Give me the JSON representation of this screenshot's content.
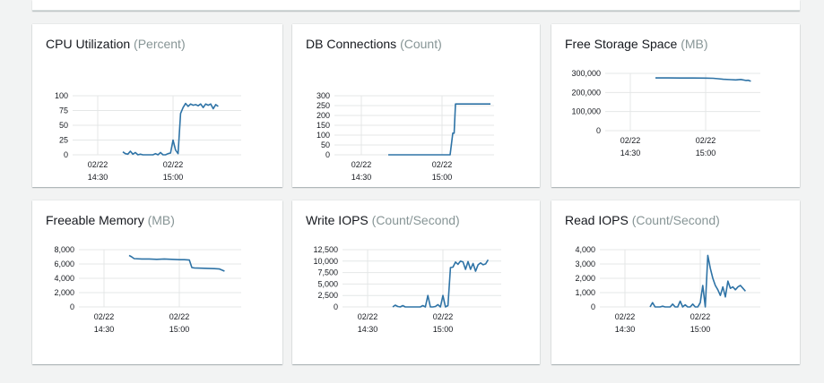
{
  "colors": {
    "line": "#2e73a6",
    "grid": "#e4e7e7",
    "axis": "#aab7b8"
  },
  "cards": [
    {
      "title": "CPU Utilization",
      "unit": "(Percent)",
      "chart_data": {
        "type": "line",
        "title": "CPU Utilization",
        "ylabel": "Percent",
        "yticks": [
          "100",
          "75",
          "50",
          "25",
          "0"
        ],
        "ytick_values": [
          100,
          75,
          50,
          25,
          0
        ],
        "ylim": [
          0,
          100
        ],
        "xticks": [
          [
            "02/22",
            "14:30"
          ],
          [
            "02/22",
            "15:00"
          ]
        ],
        "xtick_values": [
          0,
          30
        ],
        "xlim": [
          -10,
          55
        ],
        "x": [
          10,
          11,
          12,
          13,
          14,
          15,
          16,
          17,
          18,
          19,
          20,
          21,
          22,
          23,
          24,
          25,
          26,
          27,
          28,
          29,
          30,
          31,
          32,
          33,
          34,
          35,
          36,
          37,
          38,
          39,
          40,
          41,
          42,
          43,
          44,
          45,
          46,
          47,
          48
        ],
        "y": [
          5,
          2,
          1,
          6,
          1,
          4,
          0,
          1,
          0,
          0,
          0,
          0,
          0,
          2,
          0,
          4,
          0,
          0,
          2,
          3,
          25,
          8,
          2,
          70,
          80,
          87,
          82,
          86,
          84,
          85,
          83,
          86,
          80,
          86,
          84,
          86,
          78,
          85,
          82
        ]
      }
    },
    {
      "title": "DB Connections",
      "unit": "(Count)",
      "chart_data": {
        "type": "line",
        "title": "DB Connections",
        "ylabel": "Count",
        "yticks": [
          "300",
          "250",
          "200",
          "150",
          "100",
          "50",
          "0"
        ],
        "ytick_values": [
          300,
          250,
          200,
          150,
          100,
          50,
          0
        ],
        "ylim": [
          0,
          300
        ],
        "xticks": [
          [
            "02/22",
            "14:30"
          ],
          [
            "02/22",
            "15:00"
          ]
        ],
        "xtick_values": [
          0,
          30
        ],
        "xlim": [
          -10,
          55
        ],
        "x": [
          10,
          15,
          20,
          25,
          29,
          32,
          33,
          34,
          34.5,
          35,
          40,
          45,
          48
        ],
        "y": [
          0,
          0,
          0,
          0,
          0,
          0,
          0,
          110,
          110,
          258,
          258,
          258,
          258
        ]
      }
    },
    {
      "title": "Free Storage Space",
      "unit": "(MB)",
      "chart_data": {
        "type": "line",
        "title": "Free Storage Space",
        "ylabel": "MB",
        "yticks": [
          "300,000",
          "200,000",
          "100,000",
          "0"
        ],
        "ytick_values": [
          300000,
          200000,
          100000,
          0
        ],
        "ylim": [
          0,
          300000
        ],
        "xticks": [
          [
            "02/22",
            "14:30"
          ],
          [
            "02/22",
            "15:00"
          ]
        ],
        "xtick_values": [
          0,
          30
        ],
        "xlim": [
          -10,
          55
        ],
        "x": [
          10,
          15,
          20,
          25,
          30,
          33,
          35,
          37,
          40,
          42,
          44,
          46,
          47,
          48
        ],
        "y": [
          276000,
          276000,
          275500,
          275500,
          275000,
          274000,
          272000,
          269000,
          267000,
          266000,
          268000,
          263000,
          264000,
          259000
        ]
      }
    },
    {
      "title": "Freeable Memory",
      "unit": "(MB)",
      "chart_data": {
        "type": "line",
        "title": "Freeable Memory",
        "ylabel": "MB",
        "yticks": [
          "8,000",
          "6,000",
          "4,000",
          "2,000",
          "0"
        ],
        "ytick_values": [
          8000,
          6000,
          4000,
          2000,
          0
        ],
        "ylim": [
          0,
          8000
        ],
        "xticks": [
          [
            "02/22",
            "14:30"
          ],
          [
            "02/22",
            "15:00"
          ]
        ],
        "xtick_values": [
          0,
          30
        ],
        "xlim": [
          -10,
          55
        ],
        "x": [
          10,
          11,
          12,
          15,
          18,
          21,
          24,
          27,
          30,
          32,
          34,
          35,
          36,
          40,
          44,
          46,
          48
        ],
        "y": [
          7200,
          7000,
          6750,
          6700,
          6700,
          6650,
          6700,
          6650,
          6600,
          6600,
          6550,
          5500,
          5450,
          5400,
          5350,
          5300,
          5000
        ]
      }
    },
    {
      "title": "Write IOPS",
      "unit": "(Count/Second)",
      "chart_data": {
        "type": "line",
        "title": "Write IOPS",
        "ylabel": "Count/Second",
        "yticks": [
          "12,500",
          "10,000",
          "7,500",
          "5,000",
          "2,500",
          "0"
        ],
        "ytick_values": [
          12500,
          10000,
          7500,
          5000,
          2500,
          0
        ],
        "ylim": [
          0,
          12500
        ],
        "xticks": [
          [
            "02/22",
            "14:30"
          ],
          [
            "02/22",
            "15:00"
          ]
        ],
        "xtick_values": [
          0,
          30
        ],
        "xlim": [
          -10,
          55
        ],
        "x": [
          10,
          11,
          12,
          13,
          14,
          15,
          16,
          17,
          18,
          19,
          20,
          21,
          22,
          23,
          24,
          25,
          26,
          27,
          28,
          29,
          30,
          31,
          32,
          33,
          34,
          35,
          36,
          37,
          38,
          39,
          40,
          41,
          42,
          43,
          44,
          45,
          46,
          47,
          48
        ],
        "y": [
          0,
          400,
          100,
          0,
          300,
          0,
          0,
          0,
          0,
          0,
          0,
          0,
          300,
          0,
          2500,
          0,
          0,
          100,
          500,
          0,
          2500,
          0,
          300,
          8600,
          8700,
          9800,
          9300,
          10000,
          9800,
          8200,
          9900,
          8200,
          9500,
          7800,
          9200,
          9600,
          9200,
          9400,
          10300
        ]
      }
    },
    {
      "title": "Read IOPS",
      "unit": "(Count/Second)",
      "chart_data": {
        "type": "line",
        "title": "Read IOPS",
        "ylabel": "Count/Second",
        "yticks": [
          "4,000",
          "3,000",
          "2,000",
          "1,000",
          "0"
        ],
        "ytick_values": [
          4000,
          3000,
          2000,
          1000,
          0
        ],
        "ylim": [
          0,
          4000
        ],
        "xticks": [
          [
            "02/22",
            "14:30"
          ],
          [
            "02/22",
            "15:00"
          ]
        ],
        "xtick_values": [
          0,
          30
        ],
        "xlim": [
          -10,
          55
        ],
        "x": [
          10,
          11,
          12,
          13,
          14,
          15,
          16,
          17,
          18,
          19,
          20,
          21,
          22,
          23,
          24,
          25,
          26,
          27,
          28,
          29,
          30,
          31,
          32,
          33,
          34,
          35,
          36,
          37,
          38,
          39,
          40,
          41,
          42,
          43,
          44,
          45,
          46,
          47,
          48
        ],
        "y": [
          0,
          300,
          0,
          0,
          0,
          50,
          0,
          0,
          0,
          200,
          0,
          0,
          400,
          0,
          150,
          0,
          0,
          200,
          0,
          0,
          300,
          1500,
          0,
          3600,
          2700,
          2000,
          1500,
          1200,
          800,
          1400,
          700,
          1800,
          1300,
          1400,
          1200,
          1400,
          1500,
          1300,
          1100
        ]
      }
    }
  ]
}
